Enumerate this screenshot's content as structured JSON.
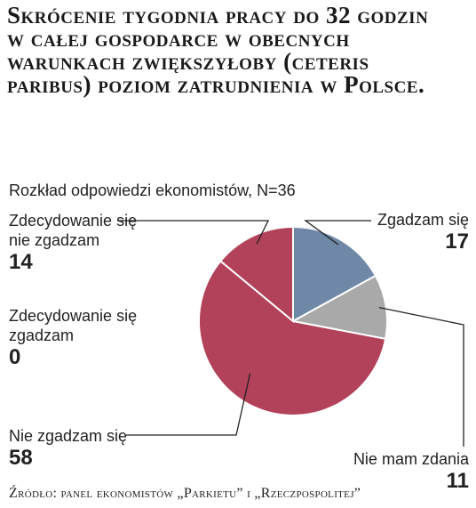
{
  "chart_data": {
    "type": "pie",
    "title": "Skrócenie tygodnia pracy do 32 godzin w całej gospodarce w obecnych warunkach zwiększyłoby (ceteris paribus) poziom zatrudnienia w Polsce.",
    "subtitle": "Rozkład odpowiedzi ekonomistów, N=36",
    "source": "Źródło: panel ekonomistów „Parkietu” i „Rzeczpospolitej”",
    "slices": [
      {
        "label": "Zgadzam się",
        "value": 17,
        "color": "#6f88a8"
      },
      {
        "label": "Nie mam zdania",
        "value": 11,
        "color": "#a9a9a9"
      },
      {
        "label": "Nie zgadzam się",
        "value": 58,
        "color": "#b2415a"
      },
      {
        "label": "Zdecydowanie się nie zgadzam",
        "value": 14,
        "color": "#b2415a"
      },
      {
        "label": "Zdecydowanie się zgadzam",
        "value": 0,
        "color": "#6f88a8"
      }
    ]
  }
}
